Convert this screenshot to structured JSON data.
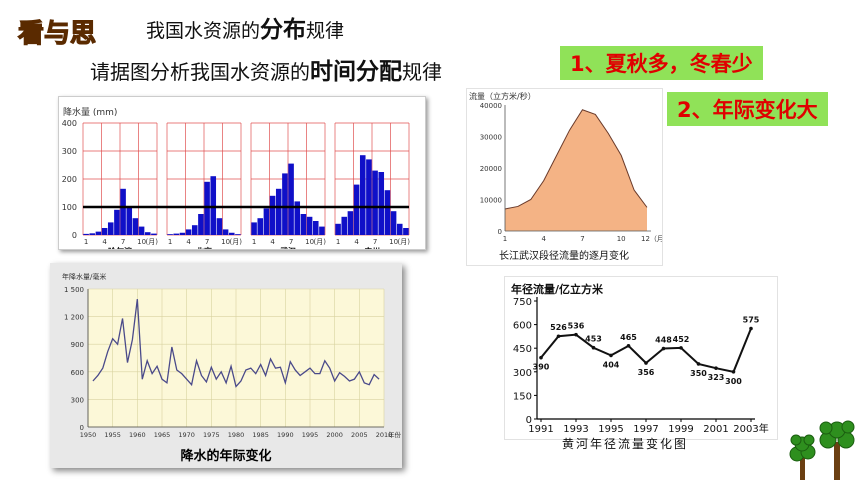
{
  "logo_text": "看与思",
  "header": {
    "line1_prefix": "我国水资源的",
    "line1_emph": "分布",
    "line1_suffix": "规律",
    "line2_prefix": "请据图分析我国水资源的",
    "line2_emph": "时间分配",
    "line2_suffix": "规律"
  },
  "answers": [
    "1、夏秋多，冬春少",
    "2、年际变化大"
  ],
  "chart_data": [
    {
      "type": "bar",
      "ylabel": "降水量 (mm)",
      "yticks": [
        "0",
        "100",
        "200",
        "300",
        "400"
      ],
      "xticks": [
        "1",
        "4",
        "7",
        "10",
        "(月)"
      ],
      "ylim": [
        0,
        400
      ],
      "reference_line": 100,
      "categories": [
        "1",
        "2",
        "3",
        "4",
        "5",
        "6",
        "7",
        "8",
        "9",
        "10",
        "11",
        "12"
      ],
      "series": [
        {
          "name": "哈尔滨",
          "values": [
            4,
            6,
            12,
            25,
            45,
            90,
            165,
            100,
            60,
            30,
            10,
            5
          ]
        },
        {
          "name": "北京",
          "values": [
            3,
            5,
            8,
            20,
            35,
            75,
            190,
            210,
            60,
            20,
            8,
            3
          ]
        },
        {
          "name": "武汉",
          "values": [
            45,
            60,
            95,
            140,
            165,
            220,
            255,
            120,
            75,
            65,
            50,
            30
          ]
        },
        {
          "name": "广州",
          "values": [
            40,
            65,
            85,
            180,
            285,
            270,
            230,
            225,
            160,
            85,
            40,
            25
          ]
        }
      ]
    },
    {
      "type": "area",
      "ylabel": "流量（立方米/秒）",
      "yticks": [
        "0",
        "10000",
        "20000",
        "30000",
        "40000"
      ],
      "xticks": [
        "1",
        "4",
        "7",
        "10",
        "12（月）"
      ],
      "ylim": [
        0,
        40000
      ],
      "x": [
        1,
        2,
        3,
        4,
        5,
        6,
        7,
        8,
        9,
        10,
        11,
        12
      ],
      "values": [
        7000,
        7800,
        10000,
        16000,
        24000,
        32000,
        38500,
        37000,
        31000,
        24000,
        13000,
        7500
      ],
      "caption": "长江武汉段径流量的逐月变化"
    },
    {
      "type": "line",
      "ylabel": "年降水量/毫米",
      "yticks": [
        "0",
        "300",
        "600",
        "900",
        "1 200",
        "1 500"
      ],
      "xticks": [
        "1950",
        "1955",
        "1960",
        "1965",
        "1970",
        "1975",
        "1980",
        "1985",
        "1990",
        "1995",
        "2000",
        "2005",
        "2010"
      ],
      "x_unit": "年份",
      "ylim": [
        0,
        1500
      ],
      "xlim": [
        1950,
        2010
      ],
      "x": [
        1951,
        1952,
        1953,
        1954,
        1955,
        1956,
        1957,
        1958,
        1959,
        1960,
        1961,
        1962,
        1963,
        1964,
        1965,
        1966,
        1967,
        1968,
        1969,
        1970,
        1971,
        1972,
        1973,
        1974,
        1975,
        1976,
        1977,
        1978,
        1979,
        1980,
        1981,
        1982,
        1983,
        1984,
        1985,
        1986,
        1987,
        1988,
        1989,
        1990,
        1991,
        1992,
        1993,
        1994,
        1995,
        1996,
        1997,
        1998,
        1999,
        2000,
        2001,
        2002,
        2003,
        2004,
        2005,
        2006,
        2007,
        2008,
        2009
      ],
      "values": [
        500,
        560,
        640,
        820,
        960,
        900,
        1180,
        700,
        950,
        1390,
        520,
        720,
        580,
        660,
        520,
        480,
        870,
        620,
        580,
        520,
        460,
        720,
        560,
        490,
        650,
        520,
        600,
        480,
        660,
        440,
        500,
        620,
        640,
        580,
        680,
        560,
        740,
        640,
        650,
        480,
        710,
        620,
        560,
        600,
        640,
        580,
        580,
        720,
        640,
        500,
        590,
        550,
        500,
        520,
        600,
        480,
        460,
        570,
        520
      ],
      "caption": "降水的年际变化"
    },
    {
      "type": "line",
      "title": "年径流量/亿立方米",
      "yticks": [
        "0",
        "150",
        "300",
        "450",
        "600",
        "750"
      ],
      "xticks": [
        "1991",
        "1993",
        "1995",
        "1997",
        "1999",
        "2001",
        "2003年"
      ],
      "ylim": [
        0,
        750
      ],
      "x": [
        1991,
        1992,
        1993,
        1994,
        1995,
        1996,
        1997,
        1998,
        1999,
        2000,
        2001,
        2002,
        2003
      ],
      "values": [
        390,
        526,
        536,
        453,
        404,
        465,
        356,
        448,
        452,
        350,
        323,
        300,
        575
      ],
      "data_labels": [
        "390",
        "526",
        "536",
        "453",
        "404",
        "465",
        "356",
        "448",
        "452",
        "350",
        "323",
        "300",
        "575"
      ],
      "caption": "黄河年径流量变化图"
    }
  ],
  "colors": {
    "answer_bg": "#90e258",
    "answer_text": "#e00000",
    "bar": "#1010c8",
    "grid_red": "#e05050",
    "area": "#f4b385"
  }
}
